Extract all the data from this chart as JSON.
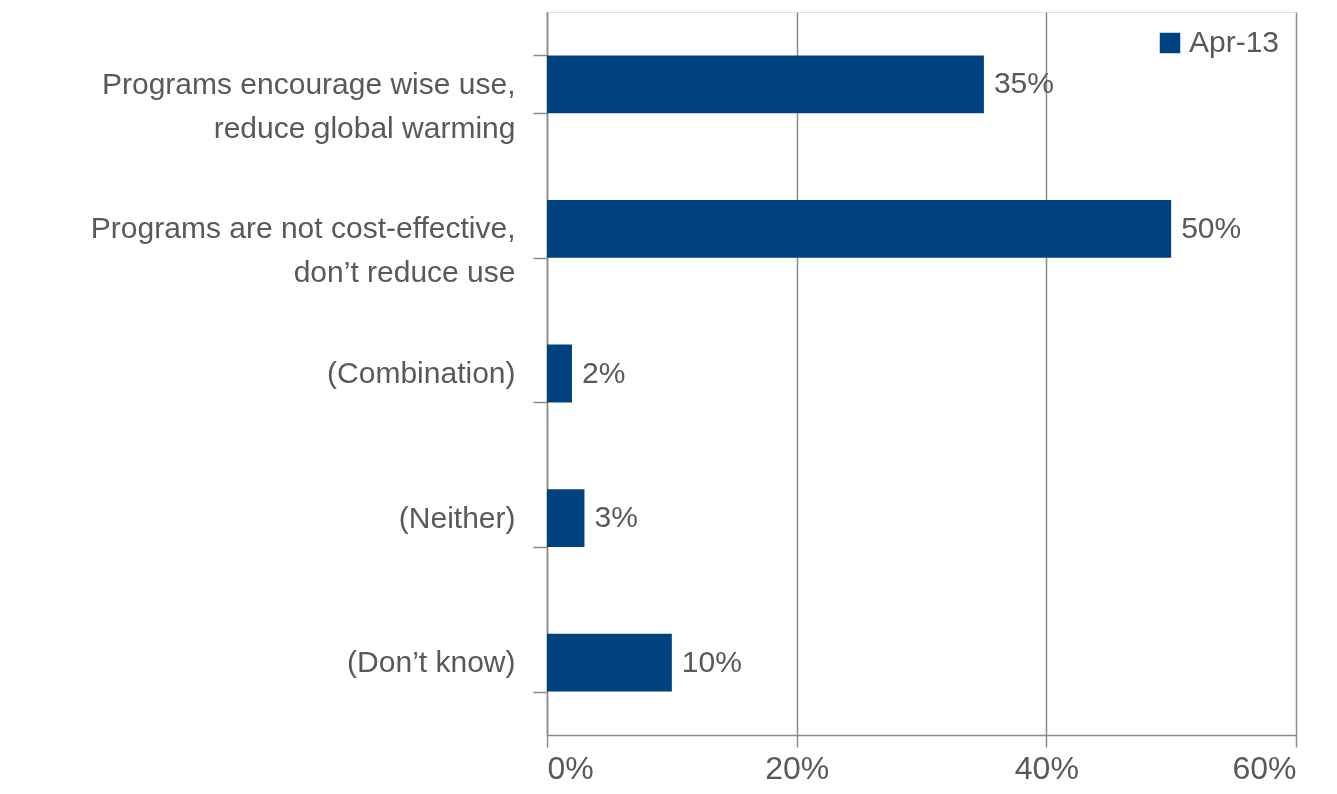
{
  "chart_data": {
    "type": "bar",
    "orientation": "horizontal",
    "categories": [
      "Programs encourage wise use, reduce global warming",
      "Programs are not cost-effective, don’t reduce use",
      "(Combination)",
      "(Neither)",
      "(Don’t know)"
    ],
    "series": [
      {
        "name": "Apr-13",
        "color": "#00427f",
        "values": [
          35,
          50,
          2,
          3,
          10
        ],
        "value_labels": [
          "35%",
          "50%",
          "2%",
          "3%",
          "10%"
        ]
      }
    ],
    "xlim": [
      0,
      60
    ],
    "xticks": [
      {
        "value": 0,
        "label": "0%"
      },
      {
        "value": 20,
        "label": "20%"
      },
      {
        "value": 40,
        "label": "40%"
      },
      {
        "value": 60,
        "label": "60%"
      }
    ],
    "grid": "x",
    "legend": "top right"
  }
}
